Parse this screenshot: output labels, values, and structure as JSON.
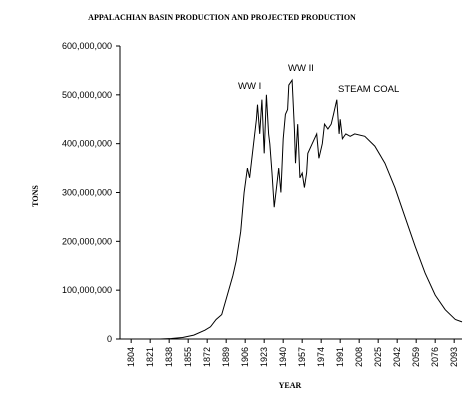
{
  "chart_data": {
    "type": "line",
    "title": "APPALACHIAN BASIN PRODUCTION AND PROJECTED PRODUCTION",
    "x_label": "YEAR",
    "y_label": "TONS",
    "annotations": [
      "WW I",
      "WW II",
      "STEAM COAL"
    ],
    "color": "#000000",
    "x": [
      1800,
      1830,
      1840,
      1850,
      1860,
      1870,
      1875,
      1880,
      1885,
      1890,
      1895,
      1898,
      1902,
      1905,
      1908,
      1910,
      1916,
      1917,
      1919,
      1921,
      1923,
      1925,
      1927,
      1928,
      1930,
      1932,
      1934,
      1936,
      1938,
      1940,
      1942,
      1944,
      1945,
      1948,
      1950,
      1951,
      1953,
      1955,
      1957,
      1959,
      1961,
      1962,
      1966,
      1970,
      1972,
      1975,
      1977,
      1980,
      1983,
      1985,
      1988,
      1990,
      1991,
      1993,
      1996,
      2000,
      2004,
      2013,
      2022,
      2031,
      2040,
      2049,
      2058,
      2067,
      2076,
      2085,
      2094,
      2100
    ],
    "values": [
      0,
      0,
      1000000,
      3000000,
      8000000,
      18000000,
      25000000,
      40000000,
      50000000,
      90000000,
      130000000,
      160000000,
      220000000,
      300000000,
      350000000,
      330000000,
      450000000,
      480000000,
      420000000,
      490000000,
      380000000,
      500000000,
      420000000,
      400000000,
      340000000,
      270000000,
      310000000,
      350000000,
      300000000,
      410000000,
      460000000,
      470000000,
      520000000,
      530000000,
      430000000,
      360000000,
      440000000,
      330000000,
      340000000,
      310000000,
      340000000,
      380000000,
      400000000,
      420000000,
      370000000,
      400000000,
      440000000,
      430000000,
      440000000,
      460000000,
      490000000,
      420000000,
      450000000,
      410000000,
      420000000,
      415000000,
      420000000,
      415000000,
      395000000,
      360000000,
      310000000,
      250000000,
      190000000,
      135000000,
      90000000,
      60000000,
      40000000,
      35000000
    ],
    "xlim": [
      1794,
      2100
    ],
    "xticks": [
      1804,
      1821,
      1838,
      1855,
      1872,
      1889,
      1906,
      1923,
      1940,
      1957,
      1974,
      1991,
      2008,
      2025,
      2042,
      2059,
      2076,
      2093
    ],
    "ylim": [
      0,
      600000000
    ],
    "yticks": [
      0,
      {
        "value": 100000000,
        "label": "100,000,000"
      },
      {
        "value": 200000000,
        "label": "200,000,000"
      },
      {
        "value": 300000000,
        "label": "300,000,000"
      },
      {
        "value": 400000000,
        "label": "400,000,000"
      },
      {
        "value": 500000000,
        "label": "500,000,000"
      },
      {
        "value": 600000000,
        "label": "600,000,000"
      }
    ],
    "grid": false
  }
}
